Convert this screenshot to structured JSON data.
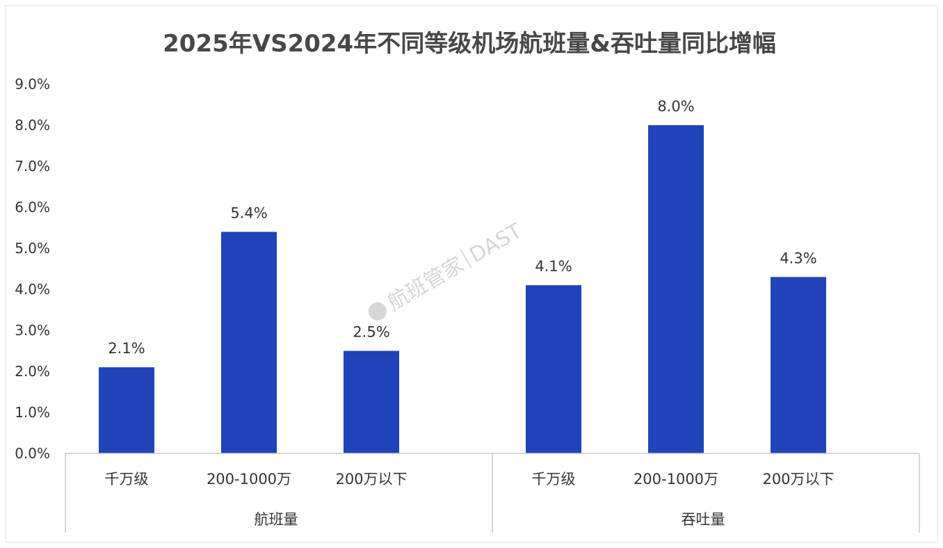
{
  "chart_data": {
    "type": "bar",
    "title": "2025年VS2024年不同等级机场航班量&吞吐量同比增幅",
    "xlabel": "",
    "ylabel": "",
    "ylim": [
      0,
      9
    ],
    "ytick_step": 1,
    "y_ticks": [
      "0.0%",
      "1.0%",
      "2.0%",
      "3.0%",
      "4.0%",
      "5.0%",
      "6.0%",
      "7.0%",
      "8.0%",
      "9.0%"
    ],
    "grid": false,
    "legend": "none",
    "bar_color": "#1f44b8",
    "groups": [
      {
        "name": "航班量",
        "categories": [
          "千万级",
          "200-1000万",
          "200万以下"
        ],
        "values": [
          2.1,
          5.4,
          2.5
        ],
        "labels": [
          "2.1%",
          "5.4%",
          "2.5%"
        ]
      },
      {
        "name": "吞吐量",
        "categories": [
          "千万级",
          "200-1000万",
          "200万以下"
        ],
        "values": [
          4.1,
          8.0,
          4.3
        ],
        "labels": [
          "4.1%",
          "8.0%",
          "4.3%"
        ]
      }
    ]
  },
  "watermark": {
    "text": "航班管家",
    "brand": "DAST"
  }
}
